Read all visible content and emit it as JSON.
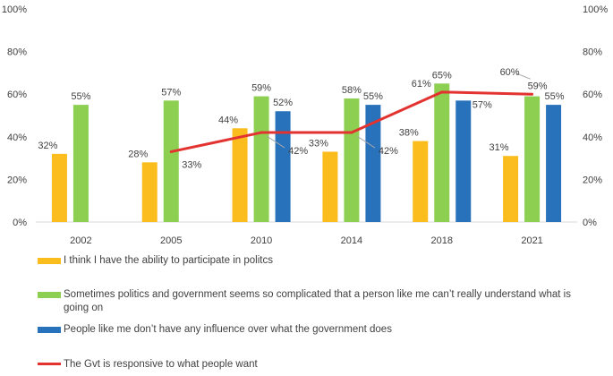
{
  "chart_data": {
    "type": "bar",
    "categories": [
      "2002",
      "2005",
      "2010",
      "2014",
      "2018",
      "2021"
    ],
    "series": [
      {
        "name": "I think I have the ability to participate in politcs",
        "kind": "bar",
        "color": "#FBBC1E",
        "values": [
          32,
          28,
          44,
          33,
          38,
          31
        ],
        "labels": [
          "32%",
          "28%",
          "44%",
          "33%",
          "38%",
          "31%"
        ]
      },
      {
        "name": "Sometimes politics and government seems so complicated that a person like me can’t really understand what is going on",
        "kind": "bar",
        "color": "#8DCF50",
        "values": [
          55,
          57,
          59,
          58,
          65,
          59
        ],
        "labels": [
          "55%",
          "57%",
          "59%",
          "58%",
          "65%",
          "59%"
        ]
      },
      {
        "name": "People like me don’t have any influence over what the government does",
        "kind": "bar",
        "color": "#2872BB",
        "values": [
          null,
          null,
          52,
          55,
          57,
          55
        ],
        "labels": [
          "",
          "",
          "52%",
          "55%",
          "57%",
          "55%"
        ]
      },
      {
        "name": "The Gvt is responsive to what people want",
        "kind": "line",
        "color": "#E23331",
        "values": [
          null,
          33,
          42,
          42,
          61,
          60
        ],
        "labels": [
          "",
          "33%",
          "42%",
          "42%",
          "61%",
          "60%"
        ]
      }
    ],
    "ylim": [
      0,
      100
    ],
    "yticks": [
      "0%",
      "20%",
      "40%",
      "60%",
      "80%",
      "100%"
    ],
    "secondary_yticks": [
      "0%",
      "20%",
      "40%",
      "60%",
      "80%",
      "100%"
    ],
    "grid": false,
    "legend_position": "bottom"
  }
}
